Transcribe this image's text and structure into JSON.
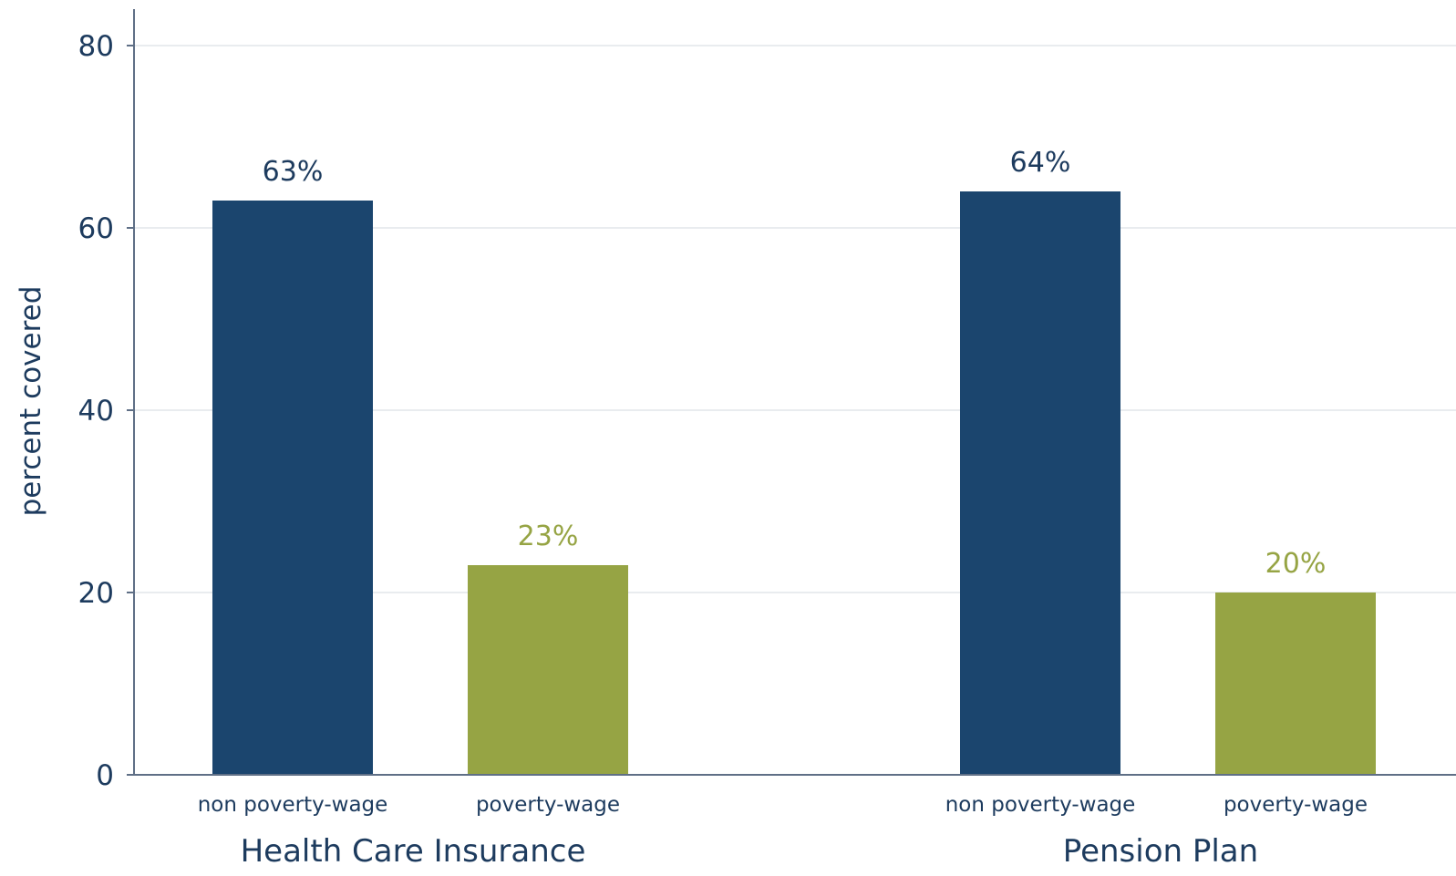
{
  "chart_data": {
    "type": "bar",
    "ylabel": "percent covered",
    "ylim": [
      0,
      84
    ],
    "yticks": [
      "0",
      "20",
      "40",
      "60",
      "80"
    ],
    "ytick_values": [
      0,
      20,
      40,
      60,
      80
    ],
    "grid": true,
    "groups": [
      {
        "label": "Health Care Insurance",
        "bars": [
          {
            "category": "non poverty-wage",
            "value": 63,
            "label": "63%",
            "color": "#1b456e"
          },
          {
            "category": "poverty-wage",
            "value": 23,
            "label": "23%",
            "color": "#96a444"
          }
        ]
      },
      {
        "label": "Pension Plan",
        "bars": [
          {
            "category": "non poverty-wage",
            "value": 64,
            "label": "64%",
            "color": "#1b456e"
          },
          {
            "category": "poverty-wage",
            "value": 20,
            "label": "20%",
            "color": "#96a444"
          }
        ]
      }
    ],
    "colors": {
      "non_poverty_wage": "#1b456e",
      "poverty_wage": "#96a444",
      "non_poverty_label": "#1d3b5e",
      "poverty_label": "#96a444",
      "axis": "#5f6f86",
      "grid": "#e2e5ea"
    }
  }
}
